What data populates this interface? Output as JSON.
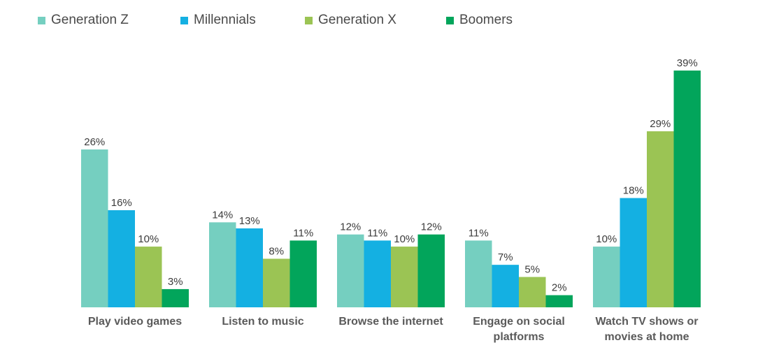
{
  "chart_data": {
    "type": "bar",
    "categories": [
      [
        "Play video games"
      ],
      [
        "Listen to music"
      ],
      [
        "Browse the internet"
      ],
      [
        "Engage on social",
        "platforms"
      ],
      [
        "Watch TV shows or",
        "movies at home"
      ]
    ],
    "series": [
      {
        "name": "Generation Z",
        "color": "#75cfc0",
        "values": [
          26,
          14,
          12,
          11,
          10
        ]
      },
      {
        "name": "Millennials",
        "color": "#14b0e2",
        "values": [
          16,
          13,
          11,
          7,
          18
        ]
      },
      {
        "name": "Generation X",
        "color": "#9bc454",
        "values": [
          10,
          8,
          10,
          5,
          29
        ]
      },
      {
        "name": "Boomers",
        "color": "#02a55b",
        "values": [
          3,
          11,
          12,
          2,
          39
        ]
      }
    ],
    "value_suffix": "%",
    "ylim": [
      0,
      39
    ],
    "legend_position": "top-left",
    "grid": false
  }
}
